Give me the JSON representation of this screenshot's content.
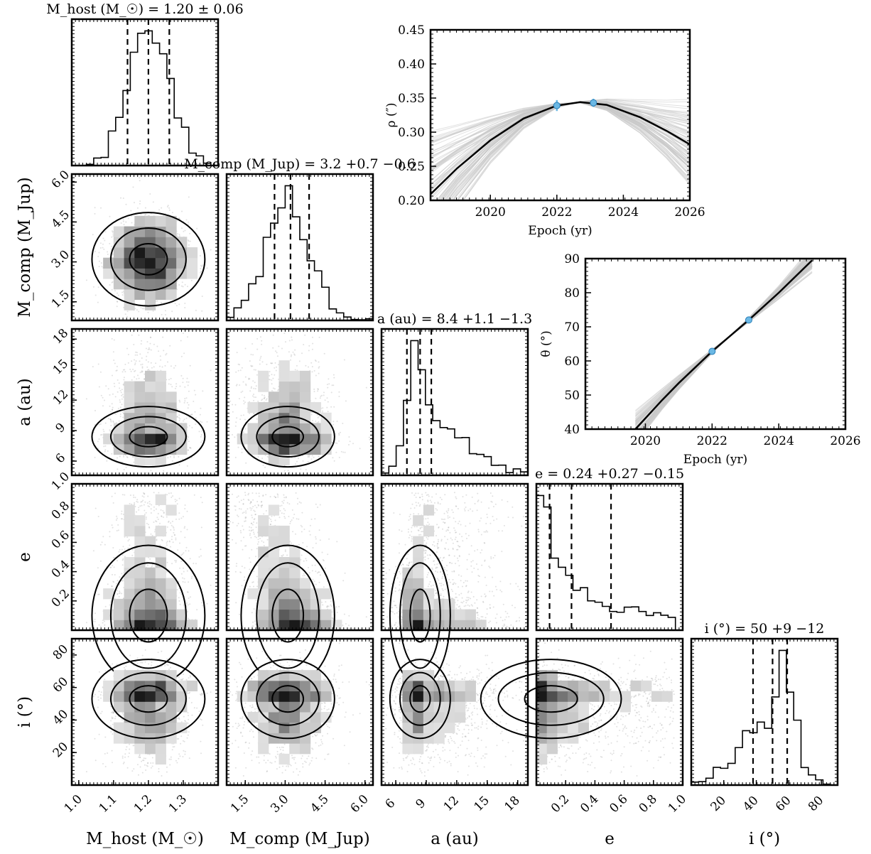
{
  "chart_data": [
    {
      "type": "corner",
      "parameters": [
        {
          "key": "mhost",
          "axis_label": "M_host (M_☉)",
          "title": "M_host (M_☉) = 1.20 ± 0.06",
          "range": [
            0.98,
            1.4
          ],
          "ticks": [
            1.0,
            1.1,
            1.2,
            1.3
          ],
          "tick_labels": [
            "1.0",
            "1.1",
            "1.2",
            "1.3"
          ],
          "median": 1.2,
          "q16": 1.14,
          "q84": 1.26,
          "hist_mean": 1.2,
          "hist_sigma": 0.06,
          "hist_skew": 0
        },
        {
          "key": "mcomp",
          "axis_label": "M_comp (M_Jup)",
          "title": "M_comp (M_Jup) = 3.2 +0.7 −0.6",
          "range": [
            0.8,
            6.3
          ],
          "ticks": [
            1.5,
            3.0,
            4.5,
            6.0
          ],
          "tick_labels": [
            "1.5",
            "3.0",
            "4.5",
            "6.0"
          ],
          "median": 3.2,
          "q16": 2.6,
          "q84": 3.9,
          "hist_mean": 3.1,
          "hist_sigma": 0.65,
          "hist_skew": 0.3
        },
        {
          "key": "a",
          "axis_label": "a (au)",
          "title": "a (au) = 8.4 +1.1 −1.3",
          "range": [
            4.6,
            19.0
          ],
          "ticks": [
            6,
            9,
            12,
            15,
            18
          ],
          "tick_labels": [
            "6",
            "9",
            "12",
            "15",
            "18"
          ],
          "median": 8.4,
          "q16": 7.1,
          "q84": 9.5,
          "hist_mean": 8.4,
          "hist_sigma": 1.1,
          "hist_skew": 2.5
        },
        {
          "key": "e",
          "axis_label": "e",
          "title": "e = 0.24 +0.27 −0.15",
          "range": [
            0.0,
            1.0
          ],
          "ticks": [
            0.2,
            0.4,
            0.6,
            0.8,
            1.0
          ],
          "tick_labels": [
            "0.2",
            "0.4",
            "0.6",
            "0.8",
            "1.0"
          ],
          "median": 0.24,
          "q16": 0.09,
          "q84": 0.51,
          "hist_mean": 0.1,
          "hist_sigma": 0.2,
          "hist_skew": 1.8
        },
        {
          "key": "inc",
          "axis_label": "i (°)",
          "title": "i (°) = 50 +9 −12",
          "range": [
            0,
            90
          ],
          "ticks": [
            20,
            40,
            60,
            80
          ],
          "tick_labels": [
            "20",
            "40",
            "60",
            "80"
          ],
          "median": 50,
          "q16": 38,
          "q84": 59,
          "hist_mean": 53,
          "hist_sigma": 9,
          "hist_skew": -1.2
        }
      ]
    },
    {
      "type": "line",
      "xlabel": "Epoch (yr)",
      "ylabel": "ρ (″)",
      "xlim": [
        2018.2,
        2026
      ],
      "ylim": [
        0.2,
        0.45
      ],
      "xticks": [
        2020,
        2022,
        2024,
        2026
      ],
      "yticks": [
        0.2,
        0.25,
        0.3,
        0.35,
        0.4,
        0.45
      ],
      "ytick_labels": [
        "0.20",
        "0.25",
        "0.30",
        "0.35",
        "0.40",
        "0.45"
      ],
      "best_fit": {
        "x": [
          2018.2,
          2019.0,
          2020.0,
          2021.0,
          2022.0,
          2022.7,
          2023.5,
          2024.5,
          2025.3,
          2026.0
        ],
        "y": [
          0.209,
          0.247,
          0.288,
          0.32,
          0.339,
          0.344,
          0.34,
          0.322,
          0.302,
          0.282
        ]
      },
      "observations": [
        {
          "x": 2022.0,
          "y": 0.339,
          "yerr": 0.008
        },
        {
          "x": 2023.1,
          "y": 0.343,
          "yerr": 0.006
        }
      ]
    },
    {
      "type": "line",
      "xlabel": "Epoch (yr)",
      "ylabel": "θ (°)",
      "xlim": [
        2018.2,
        2026
      ],
      "ylim": [
        40,
        90
      ],
      "xticks": [
        2020,
        2022,
        2024,
        2026
      ],
      "yticks": [
        40,
        50,
        60,
        70,
        80,
        90
      ],
      "ytick_labels": [
        "40",
        "50",
        "60",
        "70",
        "80",
        "90"
      ],
      "best_fit": {
        "x": [
          2019.7,
          2020.5,
          2021.0,
          2022.0,
          2023.1,
          2024.0,
          2025.0
        ],
        "y": [
          40.0,
          48.5,
          53.5,
          62.8,
          72.0,
          80.0,
          89.5
        ]
      },
      "observations": [
        {
          "x": 2022.0,
          "y": 62.8,
          "yerr": 0.6
        },
        {
          "x": 2023.1,
          "y": 72.0,
          "yerr": 0.5
        }
      ]
    }
  ],
  "colors": {
    "obs": "#6bb8e4",
    "model": "#000000",
    "draws": "#c8c8c8"
  }
}
